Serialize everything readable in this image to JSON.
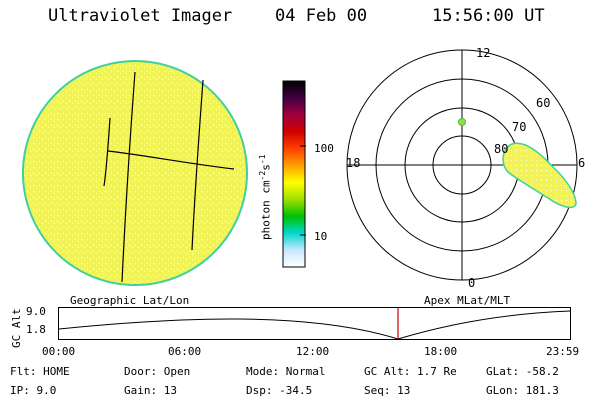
{
  "header": {
    "instrument": "Ultraviolet Imager",
    "date": "04 Feb 00",
    "time": "15:56:00 UT"
  },
  "colorbar": {
    "label": "photon cm",
    "label_sup1": "-2",
    "label_s": "s",
    "label_sup2": "-1",
    "ticks": [
      "100",
      "10"
    ],
    "colors": [
      "#ffffff",
      "#c8e8ff",
      "#00d8d0",
      "#00c000",
      "#a0e000",
      "#ffff00",
      "#ffa000",
      "#ff4000",
      "#d00000",
      "#a00040",
      "#400040",
      "#000000"
    ]
  },
  "polar": {
    "lat_labels": [
      "60",
      "70",
      "80"
    ],
    "mlt_labels": {
      "top": "12",
      "left": "18",
      "right": "6",
      "bottom": "0"
    }
  },
  "panel_labels": {
    "left": "Geographic Lat/Lon",
    "right": "Apex MLat/MLT"
  },
  "altitude_plot": {
    "axis_label": "GC Alt",
    "y_ticks": [
      "9.0",
      "1.8"
    ],
    "x_ticks": [
      "00:00",
      "06:00",
      "12:00",
      "18:00",
      "23:59"
    ],
    "marker_color": "#d00000"
  },
  "footer": {
    "flt": "Flt: HOME",
    "door": "Door: Open",
    "mode": "Mode: Normal",
    "gc_alt": "GC Alt: 1.7 Re",
    "glat": "GLat: -58.2",
    "ip": "IP:  9.0",
    "gain": "Gain: 13",
    "dsp": "Dsp:  -34.5",
    "seq": "Seq: 13",
    "glon": "GLon: 181.3"
  }
}
